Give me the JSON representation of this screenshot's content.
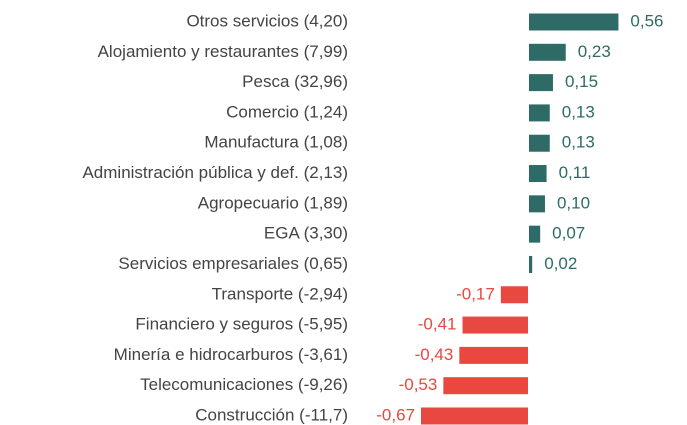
{
  "chart_data": {
    "type": "bar",
    "orientation": "horizontal",
    "categories": [
      "Otros servicios (4,20)",
      "Alojamiento y restaurantes (7,99)",
      "Pesca (32,96)",
      "Comercio (1,24)",
      "Manufactura (1,08)",
      "Administración pública y def. (2,13)",
      "Agropecuario (1,89)",
      "EGA (3,30)",
      "Servicios empresariales (0,65)",
      "Transporte (-2,94)",
      "Financiero y seguros (-5,95)",
      "Minería e hidrocarburos (-3,61)",
      "Telecomunicaciones (-9,26)",
      "Construcción (-11,7)"
    ],
    "values": [
      0.56,
      0.23,
      0.15,
      0.13,
      0.13,
      0.11,
      0.1,
      0.07,
      0.02,
      -0.17,
      -0.41,
      -0.43,
      -0.53,
      -0.67
    ],
    "value_labels": [
      "0,56",
      "0,23",
      "0,15",
      "0,13",
      "0,13",
      "0,11",
      "0,10",
      "0,07",
      "0,02",
      "-0,17",
      "-0,41",
      "-0,43",
      "-0,53",
      "-0,67"
    ],
    "colors": {
      "positive": "#2f6b66",
      "negative": "#e8483f"
    }
  }
}
